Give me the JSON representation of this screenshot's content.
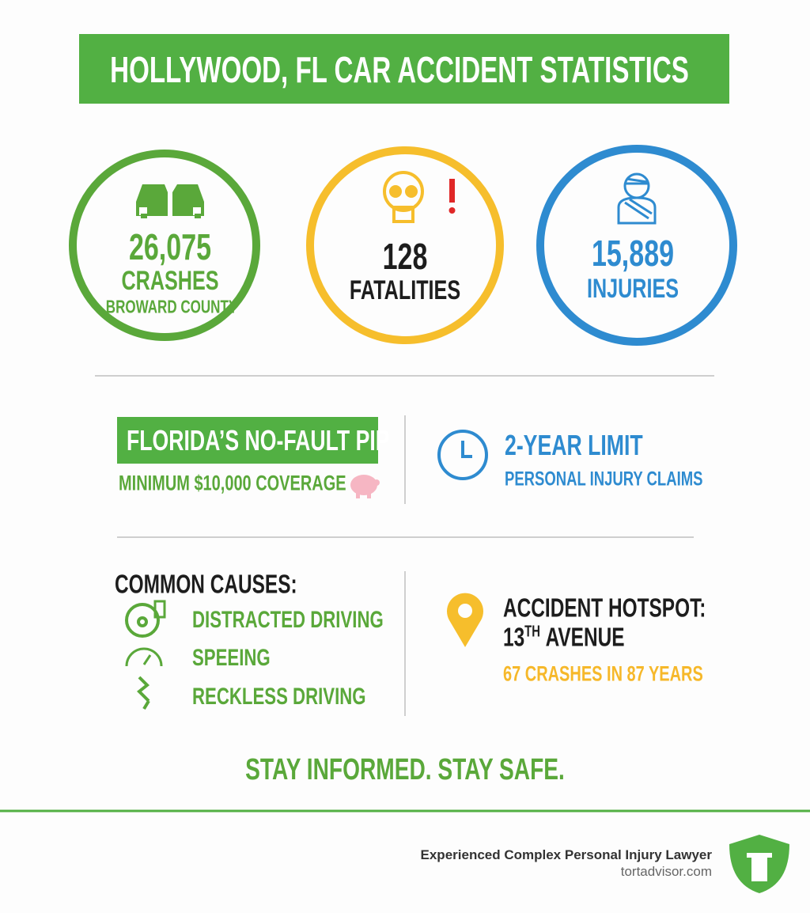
{
  "header": {
    "title": "HOLLYWOOD, FL CAR ACCIDENT STATISTICS"
  },
  "stats": [
    {
      "value": "26,075",
      "label": "CRASHES",
      "sublabel": "BROWARD COUNTY"
    },
    {
      "value": "128",
      "label": "FATALITIES"
    },
    {
      "value": "15,889",
      "label": "INJURIES"
    }
  ],
  "pip": {
    "title": "FLORIDA’S NO-FAULT PIP",
    "text": "MINIMUM $10,000 COVERAGE"
  },
  "limit": {
    "title": "2-YEAR LIMIT",
    "text": "PERSONAL INJURY CLAIMS"
  },
  "causes": {
    "title": "COMMON CAUSES:",
    "items": [
      "DISTRACTED DRIVING",
      "SPEEING",
      "RECKLESS DRIVING"
    ]
  },
  "hotspot": {
    "title": "ACCIDENT HOTSPOT:",
    "location_number": "13",
    "location_suffix": "TH",
    "location_name": "AVENUE",
    "text": "67 CRASHES IN 87 YEARS"
  },
  "tagline": "STAY INFORMED. STAY SAFE.",
  "footer": {
    "tagline": "Experienced Complex Personal Injury Lawyer",
    "site": "tortadvisor.com"
  }
}
